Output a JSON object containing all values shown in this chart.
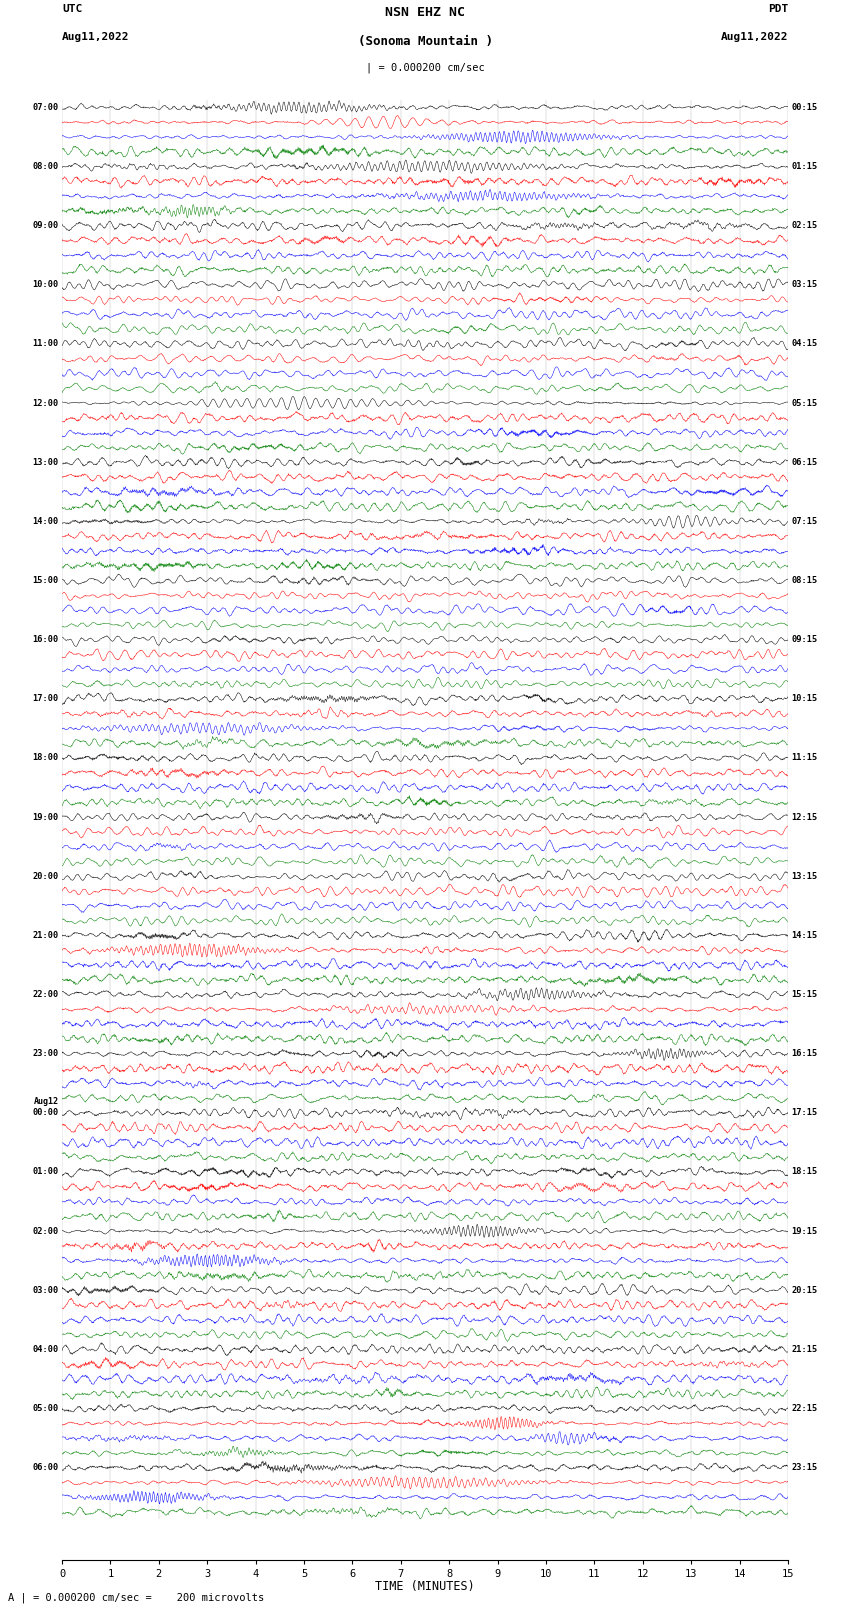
{
  "title_line1": "NSN EHZ NC",
  "title_line2": "(Sonoma Mountain )",
  "title_line3": "| = 0.000200 cm/sec",
  "left_label_line1": "UTC",
  "left_label_line2": "Aug11,2022",
  "right_label_line1": "PDT",
  "right_label_line2": "Aug11,2022",
  "xlabel": "TIME (MINUTES)",
  "footer": "A | = 0.000200 cm/sec =    200 microvolts",
  "bg_color": "#ffffff",
  "trace_colors": [
    "black",
    "red",
    "blue",
    "green"
  ],
  "num_hour_groups": 24,
  "traces_per_hour": 4,
  "time_minutes": 15,
  "left_times_utc": [
    "07:00",
    "08:00",
    "09:00",
    "10:00",
    "11:00",
    "12:00",
    "13:00",
    "14:00",
    "15:00",
    "16:00",
    "17:00",
    "18:00",
    "19:00",
    "20:00",
    "21:00",
    "22:00",
    "23:00",
    "00:00",
    "01:00",
    "02:00",
    "03:00",
    "04:00",
    "05:00",
    "06:00"
  ],
  "right_times_pdt": [
    "00:15",
    "01:15",
    "02:15",
    "03:15",
    "04:15",
    "05:15",
    "06:15",
    "07:15",
    "08:15",
    "09:15",
    "10:15",
    "11:15",
    "12:15",
    "13:15",
    "14:15",
    "15:15",
    "16:15",
    "17:15",
    "18:15",
    "19:15",
    "20:15",
    "21:15",
    "22:15",
    "23:15"
  ],
  "aug12_after_hour": 17,
  "vline_color": "#808080",
  "vline_alpha": 0.6,
  "vline_lw": 0.3
}
